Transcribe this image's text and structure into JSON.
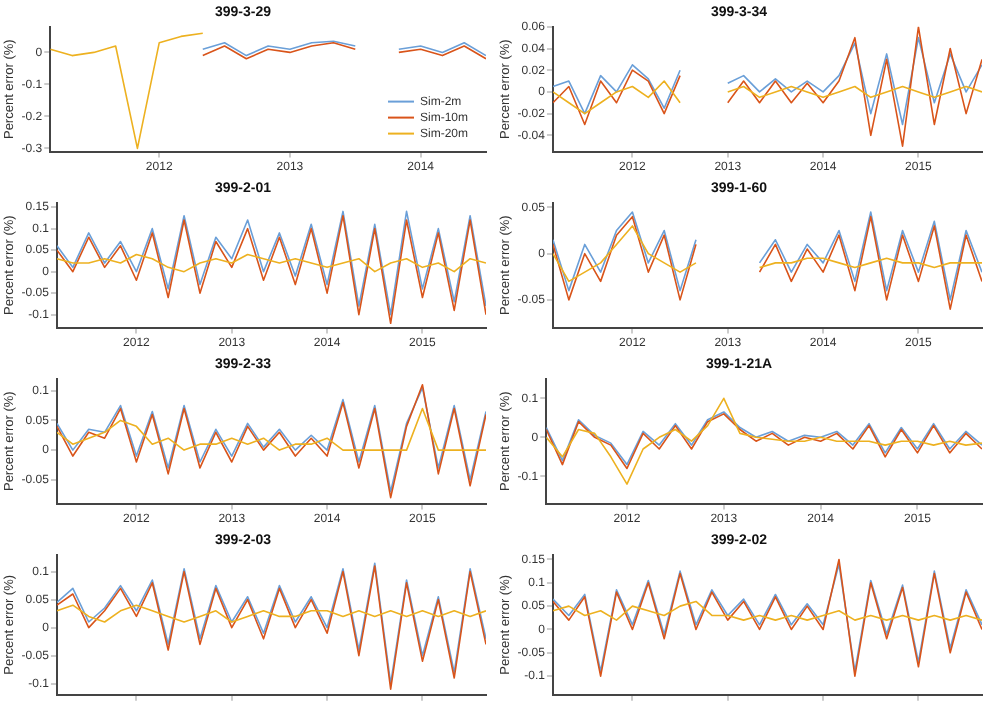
{
  "chart_data": [
    {
      "type": "line",
      "title": "399-3-29",
      "ylabel": "Percent error (%)",
      "x": [
        "2011-03",
        "2011-05",
        "2011-07",
        "2011-09",
        "2011-11",
        "2012-01",
        "2012-03",
        "2012-05",
        "2012-07",
        "2012-09",
        "2012-11",
        "2013-01",
        "2013-03",
        "2013-05",
        "2013-07",
        "2013-09",
        "2013-11",
        "2014-01",
        "2014-03",
        "2014-05",
        "2014-07"
      ],
      "xlim": [
        "2011-03",
        "2014-07"
      ],
      "xticks": [
        "2012",
        "2013",
        "2014"
      ],
      "ylim": [
        -0.31,
        0.08
      ],
      "yticks": [
        -0.3,
        -0.2,
        -0.1,
        0
      ],
      "legend": "bottom right",
      "series": [
        {
          "name": "Sim-2m",
          "color": "#6a9fd8",
          "values": [
            null,
            null,
            null,
            null,
            null,
            null,
            null,
            0.01,
            0.03,
            -0.01,
            0.02,
            0.01,
            0.03,
            0.035,
            0.02,
            null,
            0.01,
            0.02,
            0.0,
            0.03,
            -0.01
          ]
        },
        {
          "name": "Sim-10m",
          "color": "#d9541a",
          "values": [
            null,
            null,
            null,
            null,
            null,
            null,
            null,
            -0.01,
            0.02,
            -0.02,
            0.01,
            0.0,
            0.02,
            0.03,
            0.01,
            null,
            0.0,
            0.01,
            -0.01,
            0.02,
            -0.02
          ]
        },
        {
          "name": "Sim-20m",
          "color": "#edb120",
          "values": [
            0.01,
            -0.01,
            0.0,
            0.02,
            -0.3,
            0.03,
            0.05,
            0.06,
            null,
            null,
            null,
            null,
            null,
            null,
            null,
            null,
            null,
            null,
            null,
            null,
            null
          ]
        }
      ]
    },
    {
      "type": "line",
      "title": "399-3-34",
      "ylabel": "Percent error (%)",
      "x": [
        "2011-03",
        "2011-05",
        "2011-07",
        "2011-09",
        "2011-11",
        "2012-01",
        "2012-03",
        "2012-05",
        "2012-07",
        "2012-09",
        "2012-11",
        "2013-01",
        "2013-03",
        "2013-05",
        "2013-07",
        "2013-09",
        "2013-11",
        "2014-01",
        "2014-03",
        "2014-05",
        "2014-07",
        "2014-09",
        "2014-11",
        "2015-01",
        "2015-03",
        "2015-05",
        "2015-07",
        "2015-09"
      ],
      "xlim": [
        "2011-03",
        "2015-09"
      ],
      "xticks": [
        "2012",
        "2013",
        "2014",
        "2015"
      ],
      "ylim": [
        -0.055,
        0.06
      ],
      "yticks": [
        -0.04,
        -0.02,
        0,
        0.02,
        0.04,
        0.06
      ],
      "series": [
        {
          "color": "#6a9fd8",
          "values": [
            0.005,
            0.01,
            -0.02,
            0.015,
            0.0,
            0.025,
            0.012,
            -0.015,
            0.02,
            null,
            null,
            0.008,
            0.015,
            0.0,
            0.012,
            0.0,
            0.01,
            0.0,
            0.015,
            0.045,
            -0.02,
            0.035,
            -0.03,
            0.05,
            -0.01,
            0.035,
            0.0,
            0.025
          ]
        },
        {
          "color": "#d9541a",
          "values": [
            -0.01,
            0.005,
            -0.03,
            0.01,
            -0.01,
            0.02,
            0.01,
            -0.02,
            0.015,
            null,
            null,
            -0.01,
            0.01,
            -0.01,
            0.01,
            -0.01,
            0.008,
            -0.01,
            0.01,
            0.05,
            -0.04,
            0.03,
            -0.05,
            0.06,
            -0.03,
            0.04,
            -0.02,
            0.03
          ]
        },
        {
          "color": "#edb120",
          "values": [
            0,
            -0.01,
            -0.02,
            -0.01,
            0,
            0.005,
            -0.005,
            0.01,
            -0.01,
            null,
            null,
            0,
            0.005,
            -0.005,
            0,
            0.005,
            0,
            -0.005,
            0,
            0.005,
            -0.005,
            0,
            0.005,
            0,
            -0.005,
            0,
            0.005,
            0
          ]
        }
      ]
    },
    {
      "type": "line",
      "title": "399-2-01",
      "ylabel": "Percent error (%)",
      "x": [
        "2011-03",
        "2011-05",
        "2011-07",
        "2011-09",
        "2011-11",
        "2012-01",
        "2012-03",
        "2012-05",
        "2012-07",
        "2012-09",
        "2012-11",
        "2013-01",
        "2013-03",
        "2013-05",
        "2013-07",
        "2013-09",
        "2013-11",
        "2014-01",
        "2014-03",
        "2014-05",
        "2014-07",
        "2014-09",
        "2014-11",
        "2015-01",
        "2015-03",
        "2015-05",
        "2015-07",
        "2015-09"
      ],
      "xlim": [
        "2011-03",
        "2015-09"
      ],
      "xticks": [
        "2012",
        "2013",
        "2014",
        "2015"
      ],
      "ylim": [
        -0.13,
        0.16
      ],
      "yticks": [
        -0.1,
        -0.05,
        0,
        0.05,
        0.1,
        0.15
      ],
      "series": [
        {
          "color": "#6a9fd8",
          "values": [
            0.06,
            0.01,
            0.09,
            0.02,
            0.07,
            0.0,
            0.1,
            -0.04,
            0.13,
            -0.03,
            0.08,
            0.03,
            0.12,
            0.0,
            0.09,
            -0.01,
            0.11,
            -0.03,
            0.14,
            -0.08,
            0.11,
            -0.1,
            0.14,
            -0.04,
            0.1,
            -0.07,
            0.13,
            -0.08
          ]
        },
        {
          "color": "#d9541a",
          "values": [
            0.05,
            0.0,
            0.08,
            0.01,
            0.06,
            -0.02,
            0.09,
            -0.06,
            0.12,
            -0.05,
            0.07,
            0.01,
            0.1,
            -0.02,
            0.08,
            -0.03,
            0.1,
            -0.05,
            0.13,
            -0.1,
            0.1,
            -0.12,
            0.12,
            -0.06,
            0.09,
            -0.09,
            0.12,
            -0.1
          ]
        },
        {
          "color": "#edb120",
          "values": [
            0.03,
            0.02,
            0.02,
            0.03,
            0.02,
            0.04,
            0.03,
            0.01,
            0.0,
            0.02,
            0.03,
            0.02,
            0.04,
            0.03,
            0.02,
            0.03,
            0.02,
            0.01,
            0.02,
            0.03,
            0.0,
            0.02,
            0.03,
            0.01,
            0.02,
            0.0,
            0.03,
            0.02
          ]
        }
      ]
    },
    {
      "type": "line",
      "title": "399-1-60",
      "ylabel": "Percent error (%)",
      "x": [
        "2011-03",
        "2011-05",
        "2011-07",
        "2011-09",
        "2011-11",
        "2012-01",
        "2012-03",
        "2012-05",
        "2012-07",
        "2012-09",
        "2012-11",
        "2013-01",
        "2013-03",
        "2013-05",
        "2013-07",
        "2013-09",
        "2013-11",
        "2014-01",
        "2014-03",
        "2014-05",
        "2014-07",
        "2014-09",
        "2014-11",
        "2015-01",
        "2015-03",
        "2015-05",
        "2015-07",
        "2015-09"
      ],
      "xlim": [
        "2011-03",
        "2015-09"
      ],
      "xticks": [
        "2012",
        "2013",
        "2014",
        "2015"
      ],
      "ylim": [
        -0.08,
        0.055
      ],
      "yticks": [
        -0.05,
        0,
        0.05
      ],
      "series": [
        {
          "color": "#6a9fd8",
          "values": [
            0.015,
            -0.04,
            0.01,
            -0.02,
            0.025,
            0.045,
            -0.01,
            0.025,
            -0.04,
            0.015,
            null,
            null,
            null,
            -0.01,
            0.015,
            -0.02,
            0.01,
            -0.01,
            0.025,
            -0.03,
            0.045,
            -0.04,
            0.025,
            -0.02,
            0.035,
            -0.05,
            0.025,
            -0.02
          ]
        },
        {
          "color": "#d9541a",
          "values": [
            0.01,
            -0.05,
            0.0,
            -0.03,
            0.02,
            0.04,
            -0.02,
            0.02,
            -0.05,
            0.01,
            null,
            null,
            null,
            -0.02,
            0.01,
            -0.03,
            0.005,
            -0.02,
            0.02,
            -0.04,
            0.04,
            -0.05,
            0.02,
            -0.03,
            0.03,
            -0.06,
            0.02,
            -0.03
          ]
        },
        {
          "color": "#edb120",
          "values": [
            0.0,
            -0.03,
            -0.02,
            -0.01,
            0.01,
            0.03,
            0.0,
            -0.01,
            -0.02,
            -0.01,
            null,
            null,
            null,
            -0.015,
            -0.01,
            -0.01,
            -0.005,
            -0.005,
            -0.01,
            -0.015,
            -0.01,
            -0.005,
            -0.01,
            -0.01,
            -0.015,
            -0.01,
            -0.01,
            -0.01
          ]
        }
      ]
    },
    {
      "type": "line",
      "title": "399-2-33",
      "ylabel": "Percent error (%)",
      "x": [
        "2011-03",
        "2011-05",
        "2011-07",
        "2011-09",
        "2011-11",
        "2012-01",
        "2012-03",
        "2012-05",
        "2012-07",
        "2012-09",
        "2012-11",
        "2013-01",
        "2013-03",
        "2013-05",
        "2013-07",
        "2013-09",
        "2013-11",
        "2014-01",
        "2014-03",
        "2014-05",
        "2014-07",
        "2014-09",
        "2014-11",
        "2015-01",
        "2015-03",
        "2015-05",
        "2015-07",
        "2015-09"
      ],
      "xlim": [
        "2011-03",
        "2015-09"
      ],
      "xticks": [
        "2012",
        "2013",
        "2014",
        "2015"
      ],
      "ylim": [
        -0.09,
        0.12
      ],
      "yticks": [
        -0.05,
        0,
        0.05,
        0.1
      ],
      "series": [
        {
          "color": "#6a9fd8",
          "values": [
            0.045,
            0.0,
            0.035,
            0.03,
            0.075,
            -0.01,
            0.065,
            -0.03,
            0.075,
            -0.02,
            0.035,
            -0.01,
            0.045,
            0.005,
            0.035,
            0.0,
            0.025,
            0.0,
            0.085,
            -0.02,
            0.075,
            -0.07,
            0.045,
            0.105,
            -0.03,
            0.075,
            -0.05,
            0.065
          ]
        },
        {
          "color": "#d9541a",
          "values": [
            0.04,
            -0.01,
            0.03,
            0.02,
            0.07,
            -0.02,
            0.06,
            -0.04,
            0.07,
            -0.03,
            0.03,
            -0.02,
            0.04,
            0.0,
            0.03,
            -0.01,
            0.02,
            -0.01,
            0.08,
            -0.03,
            0.07,
            -0.08,
            0.04,
            0.11,
            -0.04,
            0.07,
            -0.06,
            0.06
          ]
        },
        {
          "color": "#edb120",
          "values": [
            0.03,
            0.01,
            0.02,
            0.03,
            0.05,
            0.04,
            0.01,
            0.02,
            0.0,
            0.01,
            0.01,
            0.02,
            0.01,
            0.02,
            0.0,
            0.01,
            0.01,
            0.02,
            0.0,
            0.0,
            0.0,
            0.0,
            0.0,
            0.07,
            0.0,
            0.0,
            0.0,
            0.0
          ]
        }
      ]
    },
    {
      "type": "line",
      "title": "399-1-21A",
      "ylabel": "Percent error (%)",
      "x": [
        "2011-03",
        "2011-05",
        "2011-07",
        "2011-09",
        "2011-11",
        "2012-01",
        "2012-03",
        "2012-05",
        "2012-07",
        "2012-09",
        "2012-11",
        "2013-01",
        "2013-03",
        "2013-05",
        "2013-07",
        "2013-09",
        "2013-11",
        "2014-01",
        "2014-03",
        "2014-05",
        "2014-07",
        "2014-09",
        "2014-11",
        "2015-01",
        "2015-03",
        "2015-05",
        "2015-07",
        "2015-09"
      ],
      "xlim": [
        "2011-03",
        "2015-09"
      ],
      "xticks": [
        "2012",
        "2013",
        "2014",
        "2015"
      ],
      "ylim": [
        -0.17,
        0.15
      ],
      "yticks": [
        -0.1,
        0,
        0.1
      ],
      "series": [
        {
          "color": "#6a9fd8",
          "values": [
            0.025,
            -0.06,
            0.045,
            0.005,
            -0.015,
            -0.07,
            0.015,
            -0.02,
            0.035,
            -0.02,
            0.045,
            0.065,
            0.025,
            0.0,
            0.015,
            -0.01,
            0.005,
            0.0,
            0.015,
            -0.02,
            0.035,
            -0.04,
            0.025,
            -0.03,
            0.035,
            -0.03,
            0.015,
            -0.02
          ]
        },
        {
          "color": "#d9541a",
          "values": [
            0.02,
            -0.07,
            0.04,
            0.0,
            -0.02,
            -0.08,
            0.01,
            -0.03,
            0.03,
            -0.03,
            0.04,
            0.06,
            0.02,
            -0.01,
            0.01,
            -0.02,
            0.0,
            -0.01,
            0.01,
            -0.03,
            0.03,
            -0.05,
            0.02,
            -0.04,
            0.03,
            -0.04,
            0.01,
            -0.03
          ]
        },
        {
          "color": "#edb120",
          "values": [
            0.0,
            -0.05,
            0.02,
            0.01,
            -0.05,
            -0.12,
            -0.03,
            0.0,
            0.02,
            -0.01,
            0.03,
            0.1,
            0.01,
            0.0,
            -0.005,
            -0.01,
            -0.01,
            0.0,
            -0.01,
            -0.01,
            -0.01,
            -0.02,
            -0.01,
            -0.01,
            -0.02,
            -0.01,
            -0.02,
            -0.015
          ]
        }
      ]
    },
    {
      "type": "line",
      "title": "399-2-03",
      "ylabel": "Percent error (%)",
      "x": [
        "2011-03",
        "2011-05",
        "2011-07",
        "2011-09",
        "2011-11",
        "2012-01",
        "2012-03",
        "2012-05",
        "2012-07",
        "2012-09",
        "2012-11",
        "2013-01",
        "2013-03",
        "2013-05",
        "2013-07",
        "2013-09",
        "2013-11",
        "2014-01",
        "2014-03",
        "2014-05",
        "2014-07",
        "2014-09",
        "2014-11",
        "2015-01",
        "2015-03",
        "2015-05",
        "2015-07",
        "2015-09"
      ],
      "xlim": [
        "2011-03",
        "2015-09"
      ],
      "xticks": [
        "2012",
        "2013",
        "2014",
        "2015"
      ],
      "ylim": [
        -0.12,
        0.13
      ],
      "yticks": [
        -0.1,
        -0.05,
        0,
        0.05,
        0.1
      ],
      "tick_labels": "y",
      "series": [
        {
          "color": "#6a9fd8",
          "values": [
            0.045,
            0.07,
            0.01,
            0.035,
            0.075,
            0.03,
            0.085,
            -0.03,
            0.105,
            -0.02,
            0.075,
            0.01,
            0.055,
            -0.01,
            0.075,
            0.01,
            0.055,
            0.0,
            0.105,
            -0.04,
            0.115,
            -0.1,
            0.085,
            -0.05,
            0.055,
            -0.08,
            0.105,
            -0.02
          ]
        },
        {
          "color": "#d9541a",
          "values": [
            0.04,
            0.06,
            0.0,
            0.03,
            0.07,
            0.02,
            0.08,
            -0.04,
            0.1,
            -0.03,
            0.07,
            0.0,
            0.05,
            -0.02,
            0.07,
            0.0,
            0.05,
            -0.01,
            0.1,
            -0.05,
            0.11,
            -0.11,
            0.08,
            -0.06,
            0.05,
            -0.09,
            0.1,
            -0.03
          ]
        },
        {
          "color": "#edb120",
          "values": [
            0.03,
            0.04,
            0.02,
            0.01,
            0.03,
            0.04,
            0.03,
            0.02,
            0.01,
            0.02,
            0.03,
            0.01,
            0.02,
            0.03,
            0.02,
            0.02,
            0.03,
            0.03,
            0.02,
            0.03,
            0.02,
            0.03,
            0.02,
            0.03,
            0.02,
            0.03,
            0.02,
            0.03
          ]
        }
      ]
    },
    {
      "type": "line",
      "title": "399-2-02",
      "ylabel": "Percent error (%)",
      "x": [
        "2011-03",
        "2011-05",
        "2011-07",
        "2011-09",
        "2011-11",
        "2012-01",
        "2012-03",
        "2012-05",
        "2012-07",
        "2012-09",
        "2012-11",
        "2013-01",
        "2013-03",
        "2013-05",
        "2013-07",
        "2013-09",
        "2013-11",
        "2014-01",
        "2014-03",
        "2014-05",
        "2014-07",
        "2014-09",
        "2014-11",
        "2015-01",
        "2015-03",
        "2015-05",
        "2015-07",
        "2015-09"
      ],
      "xlim": [
        "2011-03",
        "2015-09"
      ],
      "xticks": [
        "2012",
        "2013",
        "2014",
        "2015"
      ],
      "ylim": [
        -0.14,
        0.16
      ],
      "yticks": [
        -0.1,
        -0.05,
        0,
        0.05,
        0.1,
        0.15
      ],
      "tick_labels": "y",
      "series": [
        {
          "color": "#6a9fd8",
          "values": [
            0.065,
            0.03,
            0.075,
            -0.09,
            0.085,
            0.01,
            0.105,
            -0.01,
            0.125,
            0.01,
            0.085,
            0.03,
            0.065,
            0.01,
            0.075,
            0.01,
            0.055,
            0.01,
            0.14,
            -0.09,
            0.105,
            -0.01,
            0.095,
            -0.07,
            0.125,
            -0.04,
            0.085,
            0.01
          ]
        },
        {
          "color": "#d9541a",
          "values": [
            0.06,
            0.02,
            0.07,
            -0.1,
            0.08,
            0.0,
            0.1,
            -0.02,
            0.12,
            0.0,
            0.08,
            0.02,
            0.06,
            0.0,
            0.07,
            0.0,
            0.05,
            0.0,
            0.15,
            -0.1,
            0.1,
            -0.02,
            0.09,
            -0.08,
            0.12,
            -0.05,
            0.08,
            0.0
          ]
        },
        {
          "color": "#edb120",
          "values": [
            0.04,
            0.05,
            0.03,
            0.04,
            0.02,
            0.05,
            0.04,
            0.03,
            0.05,
            0.06,
            0.03,
            0.03,
            0.02,
            0.03,
            0.02,
            0.03,
            0.02,
            0.03,
            0.04,
            0.02,
            0.03,
            0.02,
            0.03,
            0.02,
            0.03,
            0.02,
            0.03,
            0.02
          ]
        }
      ]
    }
  ]
}
